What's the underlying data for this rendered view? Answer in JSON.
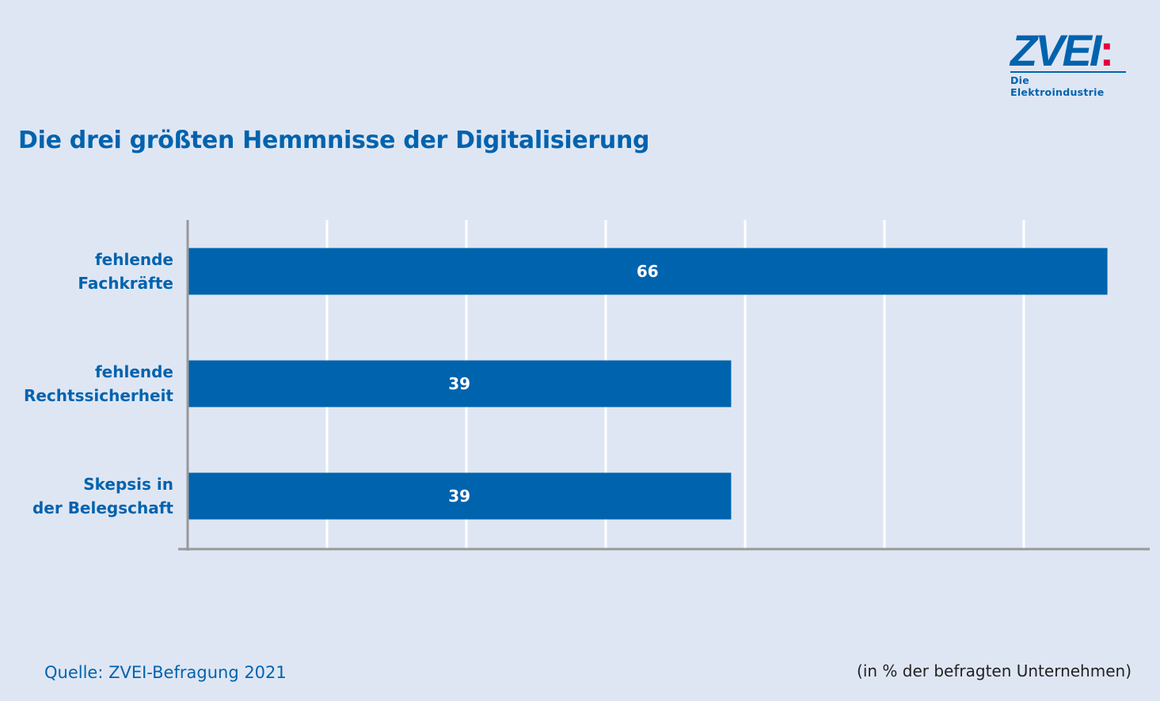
{
  "logo": {
    "text": "ZVEI:",
    "subtitle": "Die Elektroindustrie"
  },
  "chart_data": {
    "type": "bar",
    "orientation": "horizontal",
    "title": "Die drei größten Hemmnisse der Digitalisierung",
    "categories": [
      [
        "fehlende",
        "Fachkräfte"
      ],
      [
        "fehlende",
        "Rechtssicherheit"
      ],
      [
        "Skepsis in",
        "der Belegschaft"
      ]
    ],
    "values": [
      66,
      39,
      39
    ],
    "data_labels": [
      "66",
      "39",
      "39"
    ],
    "grid_step": 10,
    "grid": true,
    "bar_color": "#0063ae",
    "unit_note": "(in % der befragten Unternehmen)",
    "source": "Quelle: ZVEI-Befragung 2021"
  }
}
